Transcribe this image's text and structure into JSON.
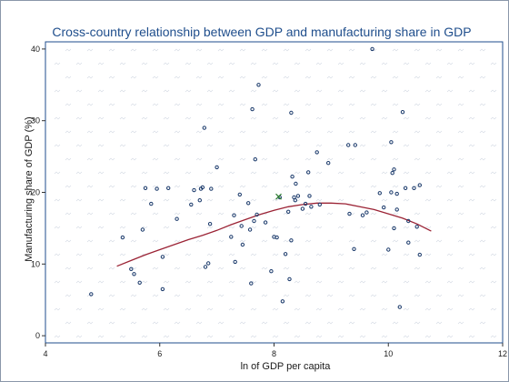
{
  "chart_data": {
    "type": "scatter",
    "title": "Cross-country relationship between GDP and manufacturing share in GDP",
    "xlabel": "ln of GDP per capita",
    "ylabel": "Manufacturing share of GDP (%)",
    "xlim": [
      4,
      12
    ],
    "ylim": [
      -1,
      41
    ],
    "xticks": [
      4,
      6,
      8,
      10,
      12
    ],
    "yticks": [
      0,
      10,
      20,
      30,
      40
    ],
    "colors": {
      "plot_border": "#1f4e8c",
      "outer_frame": "#8a97aa",
      "marker": "#1b3a6b",
      "fit_line": "#9b2335",
      "highlight": "#2e7d32"
    },
    "points": [
      {
        "x": 4.8,
        "y": 5.8
      },
      {
        "x": 5.35,
        "y": 13.7
      },
      {
        "x": 5.5,
        "y": 9.3
      },
      {
        "x": 5.55,
        "y": 8.6
      },
      {
        "x": 5.65,
        "y": 7.4
      },
      {
        "x": 5.7,
        "y": 14.8
      },
      {
        "x": 5.75,
        "y": 20.6
      },
      {
        "x": 5.85,
        "y": 18.4
      },
      {
        "x": 5.95,
        "y": 20.5
      },
      {
        "x": 6.05,
        "y": 11.0
      },
      {
        "x": 6.05,
        "y": 6.5
      },
      {
        "x": 6.15,
        "y": 20.6
      },
      {
        "x": 6.3,
        "y": 16.3
      },
      {
        "x": 6.55,
        "y": 18.3
      },
      {
        "x": 6.6,
        "y": 20.3
      },
      {
        "x": 6.7,
        "y": 18.9
      },
      {
        "x": 6.72,
        "y": 20.5
      },
      {
        "x": 6.75,
        "y": 20.7
      },
      {
        "x": 6.78,
        "y": 29.0
      },
      {
        "x": 6.8,
        "y": 9.6
      },
      {
        "x": 6.85,
        "y": 10.1
      },
      {
        "x": 6.88,
        "y": 15.6
      },
      {
        "x": 6.9,
        "y": 20.5
      },
      {
        "x": 7.0,
        "y": 23.5
      },
      {
        "x": 7.25,
        "y": 13.8
      },
      {
        "x": 7.3,
        "y": 16.8
      },
      {
        "x": 7.32,
        "y": 10.3
      },
      {
        "x": 7.4,
        "y": 19.7
      },
      {
        "x": 7.43,
        "y": 15.3
      },
      {
        "x": 7.45,
        "y": 12.7
      },
      {
        "x": 7.55,
        "y": 18.5
      },
      {
        "x": 7.58,
        "y": 14.8
      },
      {
        "x": 7.6,
        "y": 7.3
      },
      {
        "x": 7.62,
        "y": 31.6
      },
      {
        "x": 7.65,
        "y": 16.0
      },
      {
        "x": 7.67,
        "y": 24.6
      },
      {
        "x": 7.7,
        "y": 16.9
      },
      {
        "x": 7.73,
        "y": 35.0
      },
      {
        "x": 7.85,
        "y": 15.8
      },
      {
        "x": 7.95,
        "y": 9.0
      },
      {
        "x": 8.0,
        "y": 13.8
      },
      {
        "x": 8.05,
        "y": 13.7
      },
      {
        "x": 8.1,
        "y": 19.3
      },
      {
        "x": 8.15,
        "y": 4.8
      },
      {
        "x": 8.2,
        "y": 11.4
      },
      {
        "x": 8.25,
        "y": 17.3
      },
      {
        "x": 8.27,
        "y": 7.9
      },
      {
        "x": 8.3,
        "y": 13.3
      },
      {
        "x": 8.3,
        "y": 31.1
      },
      {
        "x": 8.32,
        "y": 22.2
      },
      {
        "x": 8.35,
        "y": 19.3
      },
      {
        "x": 8.37,
        "y": 18.9
      },
      {
        "x": 8.38,
        "y": 21.2
      },
      {
        "x": 8.42,
        "y": 19.5
      },
      {
        "x": 8.5,
        "y": 17.7
      },
      {
        "x": 8.55,
        "y": 18.4
      },
      {
        "x": 8.6,
        "y": 22.8
      },
      {
        "x": 8.62,
        "y": 19.5
      },
      {
        "x": 8.65,
        "y": 18.0
      },
      {
        "x": 8.75,
        "y": 25.6
      },
      {
        "x": 8.8,
        "y": 18.3
      },
      {
        "x": 8.95,
        "y": 24.1
      },
      {
        "x": 9.3,
        "y": 26.6
      },
      {
        "x": 9.32,
        "y": 17.0
      },
      {
        "x": 9.4,
        "y": 12.1
      },
      {
        "x": 9.42,
        "y": 26.6
      },
      {
        "x": 9.55,
        "y": 16.8
      },
      {
        "x": 9.62,
        "y": 17.2
      },
      {
        "x": 9.72,
        "y": 40.0
      },
      {
        "x": 9.85,
        "y": 19.9
      },
      {
        "x": 9.92,
        "y": 17.9
      },
      {
        "x": 10.0,
        "y": 12.0
      },
      {
        "x": 10.05,
        "y": 27.0
      },
      {
        "x": 10.05,
        "y": 20.0
      },
      {
        "x": 10.07,
        "y": 22.7
      },
      {
        "x": 10.1,
        "y": 23.2
      },
      {
        "x": 10.1,
        "y": 15.0
      },
      {
        "x": 10.15,
        "y": 17.6
      },
      {
        "x": 10.15,
        "y": 19.8
      },
      {
        "x": 10.2,
        "y": 4.0
      },
      {
        "x": 10.25,
        "y": 31.2
      },
      {
        "x": 10.3,
        "y": 20.6
      },
      {
        "x": 10.35,
        "y": 16.0
      },
      {
        "x": 10.35,
        "y": 13.0
      },
      {
        "x": 10.45,
        "y": 20.6
      },
      {
        "x": 10.5,
        "y": 15.2
      },
      {
        "x": 10.55,
        "y": 11.3
      },
      {
        "x": 10.55,
        "y": 21.0
      }
    ],
    "highlight_point": {
      "x": 8.08,
      "y": 19.4
    },
    "fit_line": {
      "x": [
        5.25,
        5.5,
        5.75,
        6.0,
        6.25,
        6.5,
        6.75,
        7.0,
        7.25,
        7.5,
        7.75,
        8.0,
        8.25,
        8.5,
        8.75,
        9.0,
        9.25,
        9.5,
        9.75,
        10.0,
        10.25,
        10.5,
        10.75
      ],
      "y": [
        9.7,
        10.5,
        11.3,
        12.0,
        12.7,
        13.4,
        14.0,
        14.7,
        15.5,
        16.2,
        16.9,
        17.5,
        18.0,
        18.3,
        18.5,
        18.5,
        18.4,
        18.0,
        17.6,
        17.0,
        16.4,
        15.6,
        14.6
      ]
    }
  }
}
